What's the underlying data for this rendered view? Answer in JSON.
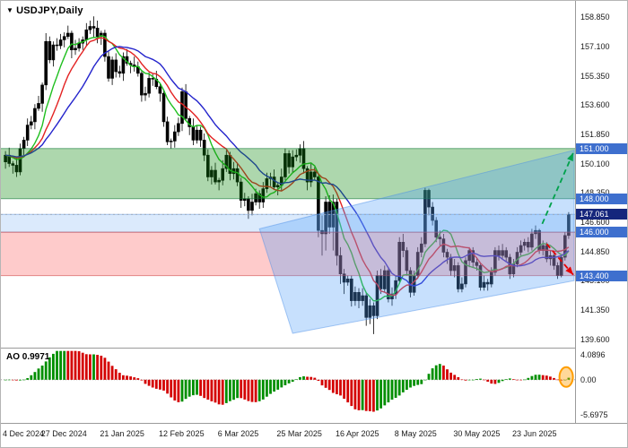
{
  "window": {
    "symbol_label": "USDJPY,Daily",
    "symbol_icon_glyph": "▼"
  },
  "indicator": {
    "label": "AO 0.9971",
    "scale_labels": [
      "4.0896",
      "0.00",
      "-5.6975"
    ]
  },
  "price_axis": {
    "scale_labels": [
      "158.850",
      "157.100",
      "155.350",
      "153.600",
      "151.850",
      "150.100",
      "148.350",
      "146.600",
      "144.850",
      "143.100",
      "141.350",
      "139.600"
    ],
    "tags": [
      {
        "text": "151.000",
        "style": "level"
      },
      {
        "text": "148.000",
        "style": "level"
      },
      {
        "text": "147.061",
        "style": "current"
      },
      {
        "text": "146.000",
        "style": "level"
      },
      {
        "text": "143.400",
        "style": "level"
      }
    ]
  },
  "date_axis": {
    "labels": [
      {
        "text": "4 Dec 2024",
        "index": 0
      },
      {
        "text": "27 Dec 2024",
        "index": 16
      },
      {
        "text": "21 Jan 2025",
        "index": 32
      },
      {
        "text": "12 Feb 2025",
        "index": 48
      },
      {
        "text": "6 Mar 2025",
        "index": 64
      },
      {
        "text": "25 Mar 2025",
        "index": 80
      },
      {
        "text": "16 Apr 2025",
        "index": 96
      },
      {
        "text": "8 May 2025",
        "index": 112
      },
      {
        "text": "30 May 2025",
        "index": 128
      },
      {
        "text": "23 Jun 2025",
        "index": 144
      }
    ]
  },
  "colors": {
    "up_candle": "#000000",
    "down_candle": "#000000",
    "candle_outline": "#000000",
    "tag_level_bg": "#3e6fce",
    "tag_current_bg": "#15267c",
    "ao_up": "#008f00",
    "ao_down": "#d40000",
    "highlight": "#ff9d00",
    "axis_text": "#1a1a1a",
    "separator": "#9a9a9a"
  },
  "chart_data": {
    "type": "candlestick",
    "title": "USDJPY Daily price chart with Awesome Oscillator",
    "symbol": "USDJPY",
    "timeframe": "Daily",
    "price_domain": [
      139.2,
      159.4
    ],
    "current_price": 147.061,
    "candles": [
      [
        150.2,
        150.85,
        149.8,
        150.6
      ],
      [
        150.6,
        151.05,
        149.9,
        150.1
      ],
      [
        150.1,
        150.25,
        149.5,
        150.0
      ],
      [
        150.0,
        150.5,
        149.3,
        149.6
      ],
      [
        149.6,
        151.3,
        149.4,
        151.0
      ],
      [
        151.0,
        151.7,
        150.6,
        151.5
      ],
      [
        151.5,
        152.8,
        151.15,
        152.4
      ],
      [
        152.4,
        152.95,
        152.15,
        152.6
      ],
      [
        152.6,
        153.65,
        152.15,
        153.4
      ],
      [
        153.4,
        154.15,
        153.25,
        153.7
      ],
      [
        153.7,
        154.95,
        153.2,
        154.8
      ],
      [
        154.8,
        157.9,
        154.5,
        157.4
      ],
      [
        157.4,
        157.7,
        156.1,
        156.3
      ],
      [
        156.3,
        157.4,
        155.9,
        157.2
      ],
      [
        157.2,
        157.6,
        156.85,
        157.15
      ],
      [
        157.15,
        157.85,
        156.95,
        157.5
      ],
      [
        157.5,
        157.95,
        157.05,
        157.7
      ],
      [
        157.7,
        158.35,
        157.55,
        157.9
      ],
      [
        157.9,
        158.05,
        156.4,
        156.9
      ],
      [
        156.9,
        157.5,
        156.6,
        157.0
      ],
      [
        157.0,
        157.6,
        156.8,
        157.3
      ],
      [
        157.3,
        157.7,
        156.9,
        157.5
      ],
      [
        157.5,
        158.5,
        157.15,
        158.1
      ],
      [
        158.1,
        158.65,
        157.85,
        158.3
      ],
      [
        158.3,
        158.9,
        157.6,
        158.2
      ],
      [
        158.2,
        158.65,
        157.3,
        157.7
      ],
      [
        157.7,
        158.05,
        157.2,
        157.9
      ],
      [
        157.9,
        158.1,
        156.2,
        156.5
      ],
      [
        156.5,
        156.8,
        155.0,
        155.2
      ],
      [
        155.2,
        156.5,
        154.8,
        156.3
      ],
      [
        156.3,
        156.7,
        155.25,
        155.6
      ],
      [
        155.6,
        155.95,
        155.25,
        155.5
      ],
      [
        155.5,
        156.75,
        155.05,
        156.5
      ],
      [
        156.5,
        156.95,
        155.95,
        156.1
      ],
      [
        156.1,
        156.25,
        155.5,
        156.0
      ],
      [
        156.0,
        156.5,
        155.6,
        155.9
      ],
      [
        155.9,
        156.2,
        155.3,
        155.5
      ],
      [
        155.5,
        155.7,
        153.8,
        154.2
      ],
      [
        154.2,
        154.7,
        153.85,
        154.3
      ],
      [
        154.3,
        155.55,
        154.05,
        155.2
      ],
      [
        155.2,
        155.45,
        154.75,
        155.15
      ],
      [
        155.15,
        155.65,
        154.55,
        154.7
      ],
      [
        154.7,
        154.85,
        153.8,
        154.3
      ],
      [
        154.3,
        154.5,
        152.3,
        152.6
      ],
      [
        152.6,
        152.9,
        151.2,
        151.4
      ],
      [
        151.4,
        151.6,
        151.0,
        151.45
      ],
      [
        151.45,
        152.4,
        151.05,
        152.0
      ],
      [
        152.0,
        152.85,
        151.75,
        152.5
      ],
      [
        152.5,
        154.65,
        152.05,
        154.4
      ],
      [
        154.4,
        154.85,
        152.65,
        152.8
      ],
      [
        152.8,
        152.95,
        151.8,
        152.3
      ],
      [
        152.3,
        152.8,
        151.2,
        151.5
      ],
      [
        151.5,
        152.4,
        151.3,
        152.1
      ],
      [
        152.1,
        152.3,
        151.1,
        151.5
      ],
      [
        151.5,
        151.9,
        150.25,
        150.6
      ],
      [
        150.6,
        150.95,
        149.05,
        149.3
      ],
      [
        149.3,
        149.95,
        148.85,
        149.7
      ],
      [
        149.7,
        150.15,
        148.85,
        149.0
      ],
      [
        149.0,
        149.25,
        148.5,
        149.1
      ],
      [
        149.1,
        150.3,
        148.8,
        149.8
      ],
      [
        149.8,
        150.9,
        149.6,
        150.6
      ],
      [
        150.6,
        150.8,
        149.1,
        149.5
      ],
      [
        149.5,
        150.2,
        149.15,
        149.8
      ],
      [
        149.8,
        150.15,
        148.75,
        149.0
      ],
      [
        149.0,
        149.25,
        147.45,
        147.9
      ],
      [
        147.9,
        148.35,
        147.55,
        148.0
      ],
      [
        148.0,
        148.15,
        146.8,
        147.3
      ],
      [
        147.3,
        148.3,
        147.0,
        147.8
      ],
      [
        147.8,
        148.6,
        147.6,
        148.3
      ],
      [
        148.3,
        148.5,
        147.4,
        147.8
      ],
      [
        147.8,
        149.0,
        147.45,
        148.6
      ],
      [
        148.6,
        149.55,
        148.35,
        149.2
      ],
      [
        149.2,
        149.55,
        148.75,
        149.3
      ],
      [
        149.3,
        149.75,
        148.55,
        148.7
      ],
      [
        148.7,
        148.95,
        148.2,
        148.8
      ],
      [
        148.8,
        149.8,
        148.5,
        149.3
      ],
      [
        149.3,
        151.0,
        149.1,
        150.7
      ],
      [
        150.7,
        150.9,
        149.5,
        149.9
      ],
      [
        149.9,
        150.9,
        149.55,
        150.5
      ],
      [
        150.5,
        150.95,
        150.25,
        150.6
      ],
      [
        150.6,
        151.25,
        150.15,
        151.0
      ],
      [
        151.0,
        151.45,
        149.5,
        149.8
      ],
      [
        149.8,
        149.95,
        148.5,
        149.0
      ],
      [
        149.0,
        150.1,
        148.7,
        149.6
      ],
      [
        149.6,
        149.9,
        149.1,
        149.3
      ],
      [
        149.3,
        149.5,
        145.7,
        146.1
      ],
      [
        146.1,
        147.0,
        144.6,
        145.9
      ],
      [
        145.9,
        148.15,
        144.9,
        147.8
      ],
      [
        147.8,
        148.2,
        145.9,
        146.3
      ],
      [
        146.3,
        148.25,
        144.9,
        147.8
      ],
      [
        147.8,
        148.0,
        144.0,
        144.6
      ],
      [
        144.6,
        145.1,
        142.9,
        143.5
      ],
      [
        143.5,
        143.8,
        142.3,
        143.0
      ],
      [
        143.0,
        143.4,
        142.8,
        143.2
      ],
      [
        143.2,
        143.4,
        141.55,
        141.9
      ],
      [
        141.9,
        142.75,
        141.6,
        142.4
      ],
      [
        142.4,
        142.65,
        141.45,
        141.9
      ],
      [
        141.9,
        142.65,
        141.6,
        142.2
      ],
      [
        142.2,
        142.35,
        140.4,
        140.9
      ],
      [
        140.9,
        142.0,
        140.5,
        141.6
      ],
      [
        141.6,
        141.8,
        139.9,
        141.0
      ],
      [
        141.0,
        143.7,
        140.8,
        143.4
      ],
      [
        143.4,
        143.8,
        142.3,
        142.6
      ],
      [
        142.6,
        144.0,
        142.4,
        143.7
      ],
      [
        143.7,
        143.9,
        141.8,
        142.0
      ],
      [
        142.0,
        142.7,
        141.6,
        142.3
      ],
      [
        142.3,
        143.4,
        142.0,
        143.1
      ],
      [
        143.1,
        145.7,
        142.9,
        145.4
      ],
      [
        145.4,
        145.9,
        144.5,
        144.9
      ],
      [
        144.9,
        145.1,
        143.4,
        143.7
      ],
      [
        143.7,
        143.9,
        142.1,
        142.4
      ],
      [
        142.4,
        143.7,
        142.2,
        143.4
      ],
      [
        143.4,
        145.1,
        143.2,
        144.8
      ],
      [
        144.8,
        145.7,
        144.5,
        145.3
      ],
      [
        145.3,
        148.65,
        145.1,
        148.5
      ],
      [
        148.5,
        148.6,
        147.0,
        147.5
      ],
      [
        147.5,
        147.8,
        146.4,
        146.7
      ],
      [
        146.7,
        146.9,
        145.4,
        145.7
      ],
      [
        145.7,
        146.1,
        145.2,
        145.6
      ],
      [
        145.6,
        145.9,
        144.5,
        144.8
      ],
      [
        144.8,
        145.0,
        144.1,
        144.5
      ],
      [
        144.5,
        144.7,
        143.4,
        143.7
      ],
      [
        143.7,
        144.4,
        143.3,
        144.0
      ],
      [
        144.0,
        144.2,
        142.4,
        142.6
      ],
      [
        142.6,
        143.3,
        142.4,
        142.9
      ],
      [
        142.9,
        144.5,
        142.7,
        144.3
      ],
      [
        144.3,
        145.1,
        143.9,
        144.9
      ],
      [
        144.9,
        145.1,
        143.9,
        144.2
      ],
      [
        144.2,
        144.5,
        143.7,
        144.0
      ],
      [
        144.0,
        144.2,
        142.5,
        142.7
      ],
      [
        142.7,
        143.4,
        142.5,
        143.0
      ],
      [
        143.0,
        143.2,
        142.5,
        142.9
      ],
      [
        142.9,
        143.9,
        142.7,
        143.6
      ],
      [
        143.6,
        145.1,
        143.4,
        144.9
      ],
      [
        144.9,
        145.2,
        144.3,
        144.6
      ],
      [
        144.6,
        145.3,
        144.4,
        144.9
      ],
      [
        144.9,
        145.1,
        144.2,
        144.5
      ],
      [
        144.5,
        144.7,
        143.2,
        143.5
      ],
      [
        143.5,
        144.4,
        143.3,
        144.1
      ],
      [
        144.1,
        145.1,
        143.9,
        144.8
      ],
      [
        144.8,
        145.5,
        144.6,
        145.2
      ],
      [
        145.2,
        145.6,
        144.9,
        145.4
      ],
      [
        145.4,
        145.7,
        144.8,
        145.1
      ],
      [
        145.1,
        146.2,
        144.9,
        145.9
      ],
      [
        145.9,
        146.4,
        145.6,
        146.1
      ],
      [
        146.1,
        146.2,
        144.7,
        144.9
      ],
      [
        144.9,
        145.5,
        144.6,
        145.2
      ],
      [
        145.2,
        145.4,
        144.2,
        144.4
      ],
      [
        144.4,
        144.9,
        144.0,
        144.6
      ],
      [
        144.6,
        144.8,
        143.75,
        144.0
      ],
      [
        144.0,
        144.2,
        143.2,
        143.4
      ],
      [
        143.4,
        144.7,
        143.3,
        144.5
      ],
      [
        144.5,
        146.0,
        144.3,
        145.8
      ],
      [
        145.8,
        147.2,
        145.6,
        147.06
      ]
    ],
    "moving_averages": [
      {
        "name": "ma-fast-green",
        "period": 8,
        "color": "#1fbf1f"
      },
      {
        "name": "ma-mid-red",
        "period": 13,
        "color": "#e32222"
      },
      {
        "name": "ma-slow-blue",
        "period": 21,
        "color": "#2424cc"
      }
    ],
    "zones": [
      {
        "name": "resistance-zone",
        "from": 148.0,
        "to": 151.0,
        "fill": "rgba(20,140,20,0.35)",
        "border": "rgba(0,110,40,0.55)"
      },
      {
        "name": "neutral-zone",
        "from": 146.0,
        "to": 147.061,
        "fill": "rgba(110,170,245,0.25)",
        "border": "rgba(70,130,210,0.45)"
      },
      {
        "name": "support-zone",
        "from": 143.4,
        "to": 146.0,
        "fill": "rgba(250,70,70,0.28)",
        "border": "rgba(200,40,40,0.5)"
      }
    ],
    "channel": {
      "name": "ascending-channel",
      "points": [
        [
          69,
          146.2
        ],
        [
          155,
          150.9
        ],
        [
          155,
          143.1
        ],
        [
          78,
          139.95
        ]
      ],
      "fill": "rgba(80,160,250,0.32)",
      "border": "rgba(70,140,230,0.45)"
    },
    "arrows": [
      {
        "name": "bullish-scenario-arrow",
        "dir": "up",
        "from": [
          145.8,
          146.5
        ],
        "to": [
          155.0,
          150.75
        ],
        "color": "#00a14b"
      },
      {
        "name": "bearish-scenario-arrow",
        "dir": "down",
        "from": [
          147.0,
          145.3
        ],
        "to": [
          155.5,
          143.45
        ],
        "color": "#e60000"
      }
    ],
    "ao": {
      "name": "Awesome Oscillator",
      "value": 0.9971,
      "fast_period": 5,
      "slow_period": 34,
      "domain": [
        -6.6,
        4.8
      ],
      "highlight_center_index": 152.3
    }
  }
}
